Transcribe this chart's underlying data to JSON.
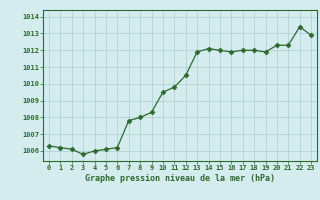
{
  "x": [
    0,
    1,
    2,
    3,
    4,
    5,
    6,
    7,
    8,
    9,
    10,
    11,
    12,
    13,
    14,
    15,
    16,
    17,
    18,
    19,
    20,
    21,
    22,
    23
  ],
  "y": [
    1006.3,
    1006.2,
    1006.1,
    1005.8,
    1006.0,
    1006.1,
    1006.2,
    1007.8,
    1008.0,
    1008.3,
    1009.5,
    1009.8,
    1010.5,
    1011.9,
    1012.1,
    1012.0,
    1011.9,
    1012.0,
    1012.0,
    1011.9,
    1012.3,
    1012.3,
    1013.4,
    1012.9
  ],
  "line_color": "#2d6a2d",
  "marker_color": "#2d6a2d",
  "bg_color": "#d4ecee",
  "grid_color": "#aacdd1",
  "xlabel": "Graphe pression niveau de la mer (hPa)",
  "xlabel_color": "#2d6a2d",
  "ylabel_ticks": [
    1006,
    1007,
    1008,
    1009,
    1010,
    1011,
    1012,
    1013,
    1014
  ],
  "ylim": [
    1005.4,
    1014.4
  ],
  "xlim": [
    -0.5,
    23.5
  ],
  "tick_label_color": "#2d6a2d",
  "spine_color": "#2d6a2d",
  "figsize": [
    3.2,
    2.0
  ],
  "dpi": 100
}
